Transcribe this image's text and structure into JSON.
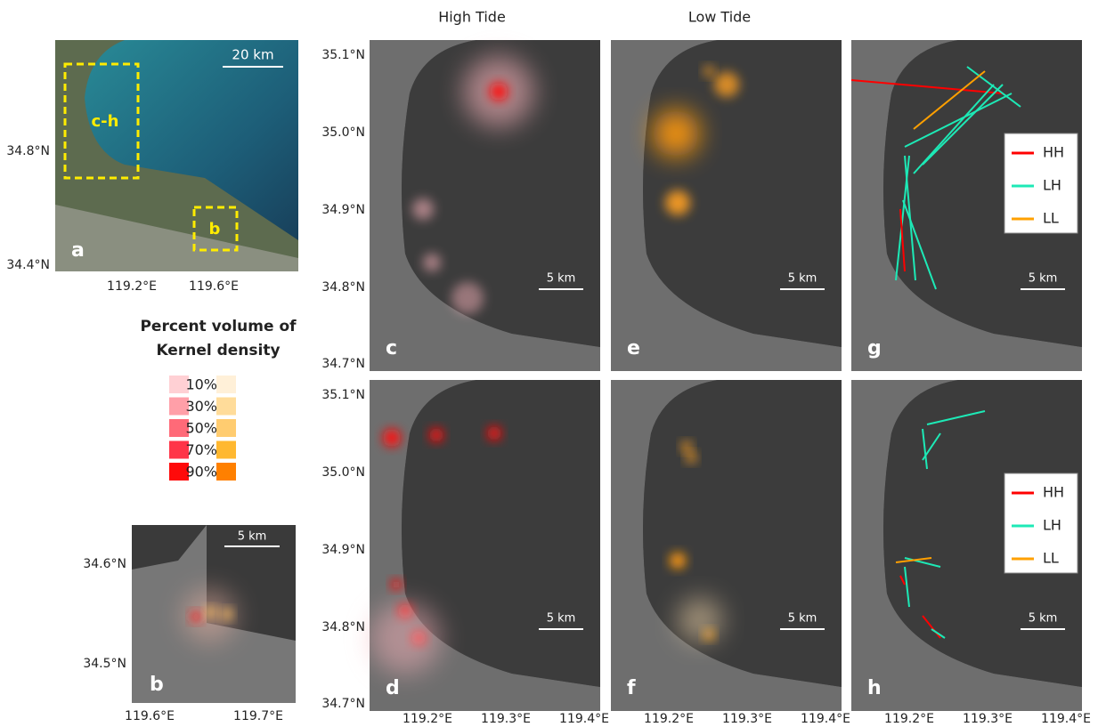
{
  "column_titles": [
    "High Tide",
    "Low Tide"
  ],
  "overview": {
    "label": "a",
    "scale": "20 km",
    "boxes": [
      "c-h",
      "b"
    ],
    "lat_ticks": [
      "34.8°N",
      "34.4°N"
    ],
    "lon_ticks": [
      "119.2°E",
      "119.6°E"
    ]
  },
  "inset": {
    "label": "b",
    "scale": "5 km",
    "lat_ticks": [
      "34.6°N",
      "34.5°N"
    ],
    "lon_ticks": [
      "119.6°E",
      "119.7°E"
    ]
  },
  "kernel_legend": {
    "title": [
      "Percent volume of",
      "Kernel density"
    ],
    "levels": [
      "10%",
      "30%",
      "50%",
      "70%",
      "90%"
    ]
  },
  "lat_ticks": [
    "35.1°N",
    "35.0°N",
    "34.9°N",
    "34.8°N",
    "34.7°N"
  ],
  "lon_ticks": [
    "119.2°E",
    "119.3°E",
    "119.4°E"
  ],
  "panels": [
    {
      "label": "c",
      "scale": "5 km"
    },
    {
      "label": "e",
      "scale": "5 km"
    },
    {
      "label": "g",
      "scale": "5 km",
      "legend": [
        "HH",
        "LH",
        "LL"
      ]
    },
    {
      "label": "d",
      "scale": "5 km"
    },
    {
      "label": "f",
      "scale": "5 km"
    },
    {
      "label": "h",
      "scale": "5 km",
      "legend": [
        "HH",
        "LH",
        "LL"
      ]
    }
  ]
}
